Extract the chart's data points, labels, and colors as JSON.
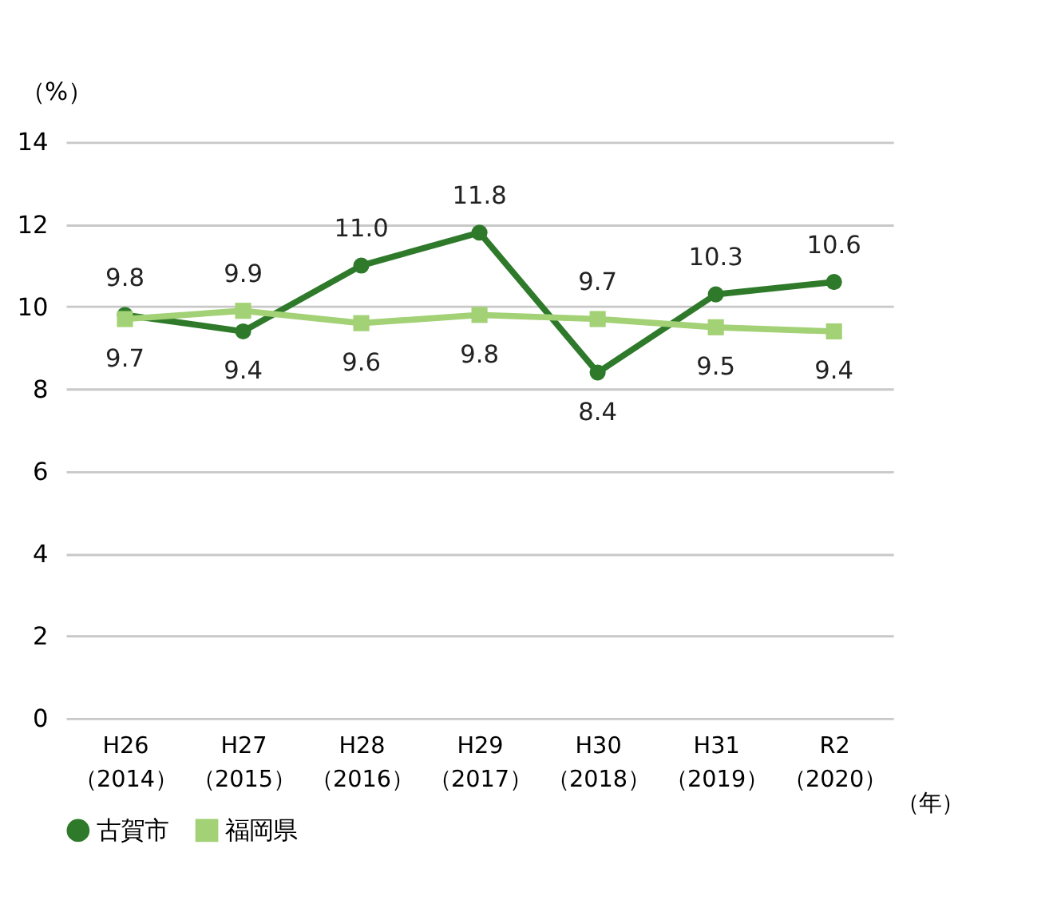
{
  "chart_data": {
    "type": "line",
    "categories": [
      "H26\n（2014）",
      "H27\n（2015）",
      "H28\n（2016）",
      "H29\n（2017）",
      "H30\n（2018）",
      "H31\n（2019）",
      "R2\n（2020）"
    ],
    "series": [
      {
        "name": "古賀市",
        "color": "#2e7a2a",
        "marker": "circle",
        "values": [
          9.8,
          9.4,
          11.0,
          11.8,
          8.4,
          10.3,
          10.6
        ],
        "value_labels": [
          "9.8",
          "9.4",
          "11.0",
          "11.8",
          "8.4",
          "10.3",
          "10.6"
        ]
      },
      {
        "name": "福岡県",
        "color": "#a3d175",
        "marker": "square",
        "values": [
          9.7,
          9.9,
          9.6,
          9.8,
          9.7,
          9.5,
          9.4
        ],
        "value_labels": [
          "9.7",
          "9.9",
          "9.6",
          "9.8",
          "9.7",
          "9.5",
          "9.4"
        ]
      }
    ],
    "ylim": [
      0,
      14
    ],
    "yticks": [
      0,
      2,
      4,
      6,
      8,
      10,
      12,
      14
    ],
    "xlabel": "（年）",
    "ylabel": "（%）",
    "grid": "y",
    "legend": "bottom",
    "line_style": "solid"
  }
}
